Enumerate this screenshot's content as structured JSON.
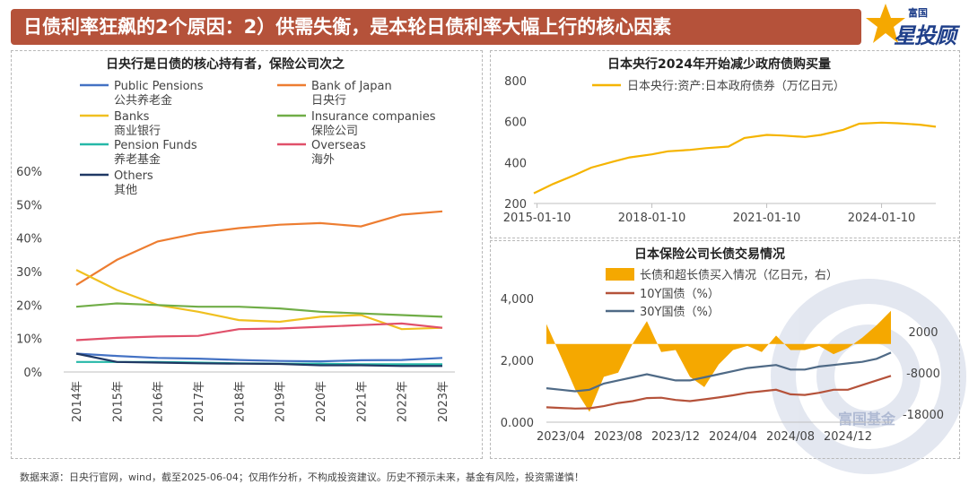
{
  "header": {
    "title": "日债利率狂飙的2个原因：2）供需失衡，是本轮日债利率大幅上行的核心因素"
  },
  "logo": {
    "small": "富国",
    "big": "星投顾"
  },
  "watermark": {
    "text": "富国基金"
  },
  "footnote": "数据来源：日央行官网，wind，截至2025-06-04；仅用作分析，不构成投资建议。历史不预示未来，基金有风险，投资需谨慎！",
  "colors": {
    "header": "#b5523a",
    "accent": "#f5a800"
  },
  "chart_data": [
    {
      "type": "line",
      "title": "日央行是日债的核心持有者，保险公司次之",
      "categories": [
        "2014年",
        "2015年",
        "2016年",
        "2017年",
        "2018年",
        "2019年",
        "2020年",
        "2021年",
        "2022年",
        "2023年"
      ],
      "ylim": [
        0,
        60
      ],
      "yticks": [
        "0%",
        "10%",
        "20%",
        "30%",
        "40%",
        "50%",
        "60%"
      ],
      "legend_placement": "top-left",
      "series": [
        {
          "name": "Public Pensions",
          "name_cn": "公共养老金",
          "color": "#4472c4",
          "values": [
            5.5,
            4.8,
            4.2,
            4.0,
            3.6,
            3.3,
            3.2,
            3.5,
            3.6,
            4.2
          ]
        },
        {
          "name": "Bank of Japan",
          "name_cn": "日央行",
          "color": "#ed7d31",
          "values": [
            26.0,
            33.5,
            39.0,
            41.5,
            43.0,
            44.0,
            44.5,
            43.5,
            47.0,
            48.0
          ]
        },
        {
          "name": "Banks",
          "name_cn": "商业银行",
          "color": "#f0c020",
          "values": [
            30.5,
            24.5,
            20.0,
            18.0,
            15.5,
            15.0,
            16.5,
            17.0,
            12.8,
            13.2
          ]
        },
        {
          "name": "Insurance companies",
          "name_cn": "保险公司",
          "color": "#70ad47",
          "values": [
            19.5,
            20.5,
            20.0,
            19.5,
            19.5,
            19.0,
            18.0,
            17.5,
            17.0,
            16.5
          ]
        },
        {
          "name": "Pension Funds",
          "name_cn": "养老基金",
          "color": "#26b8a8",
          "values": [
            3.0,
            3.0,
            3.0,
            2.8,
            2.6,
            2.5,
            2.5,
            2.3,
            2.3,
            2.3
          ]
        },
        {
          "name": "Overseas",
          "name_cn": "海外",
          "color": "#e0506a",
          "values": [
            9.5,
            10.2,
            10.6,
            10.8,
            12.8,
            13.0,
            13.5,
            14.0,
            14.5,
            13.2
          ]
        },
        {
          "name": "Others",
          "name_cn": "其他",
          "color": "#1f3864",
          "values": [
            5.5,
            3.0,
            2.8,
            2.6,
            2.5,
            2.4,
            2.0,
            2.0,
            1.8,
            1.8
          ]
        }
      ]
    },
    {
      "type": "line",
      "title": "日本央行2024年开始减少政府债购买量",
      "xticks": [
        "2015-01-10",
        "2018-01-10",
        "2021-01-10",
        "2024-01-10"
      ],
      "ylim": [
        200,
        800
      ],
      "yticks": [
        "200",
        "400",
        "600",
        "800"
      ],
      "legend_placement": "top-left",
      "series": [
        {
          "name": "日本央行:资产:日本政府债券（万亿日元）",
          "color": "#f5b400",
          "x": [
            "2014-12",
            "2015-06",
            "2016-01",
            "2016-06",
            "2017-01",
            "2017-06",
            "2018-01",
            "2018-06",
            "2019-01",
            "2019-06",
            "2020-01",
            "2020-06",
            "2021-01",
            "2021-06",
            "2022-01",
            "2022-06",
            "2023-01",
            "2023-06",
            "2024-01",
            "2024-06",
            "2025-01",
            "2025-06"
          ],
          "values": [
            250,
            295,
            340,
            375,
            405,
            425,
            440,
            455,
            462,
            470,
            478,
            520,
            535,
            532,
            525,
            535,
            560,
            590,
            595,
            592,
            585,
            575
          ]
        }
      ]
    },
    {
      "type": "area",
      "title": "日本保险公司长债交易情况",
      "xticks": [
        "2023/04",
        "2023/08",
        "2023/12",
        "2024/04",
        "2024/08",
        "2024/12"
      ],
      "ylim": [
        0,
        4000
      ],
      "yticks": [
        "0.000",
        "2,000",
        "4,000"
      ],
      "y2lim": [
        -20000,
        10000
      ],
      "y2ticks": [
        "-18000",
        "-8000",
        "2000"
      ],
      "legend_placement": "top-left",
      "x": [
        "2023-03",
        "2023-04",
        "2023-05",
        "2023-06",
        "2023-07",
        "2023-08",
        "2023-09",
        "2023-10",
        "2023-11",
        "2023-12",
        "2024-01",
        "2024-02",
        "2024-03",
        "2024-04",
        "2024-05",
        "2024-06",
        "2024-07",
        "2024-08",
        "2024-09",
        "2024-10",
        "2024-11",
        "2024-12",
        "2025-01",
        "2025-02",
        "2025-03"
      ],
      "series": [
        {
          "name": "长债和超长债买入情况（亿日元，右）",
          "color": "#f5a800",
          "axis": "right",
          "values": [
            3800,
            -4000,
            -12000,
            -17500,
            -9000,
            -8000,
            -1000,
            4500,
            -3000,
            -2500,
            -9000,
            -11500,
            -6000,
            -2500,
            -1500,
            -3000,
            1000,
            -2500,
            -2500,
            -1500,
            -3500,
            -2000,
            500,
            3500,
            7000
          ]
        },
        {
          "name": "10Y国债（%）",
          "color": "#b5523a",
          "axis": "left",
          "values": [
            480,
            460,
            440,
            450,
            520,
            620,
            680,
            780,
            790,
            720,
            680,
            740,
            800,
            870,
            950,
            1000,
            1050,
            900,
            880,
            950,
            1050,
            1050,
            1200,
            1350,
            1500
          ]
        },
        {
          "name": "30Y国债（%）",
          "color": "#4f6a86",
          "axis": "left",
          "values": [
            1100,
            1050,
            1000,
            1050,
            1250,
            1350,
            1450,
            1550,
            1450,
            1350,
            1350,
            1450,
            1550,
            1650,
            1750,
            1800,
            1850,
            1700,
            1700,
            1800,
            1850,
            1900,
            1950,
            2050,
            2250
          ]
        }
      ]
    }
  ]
}
